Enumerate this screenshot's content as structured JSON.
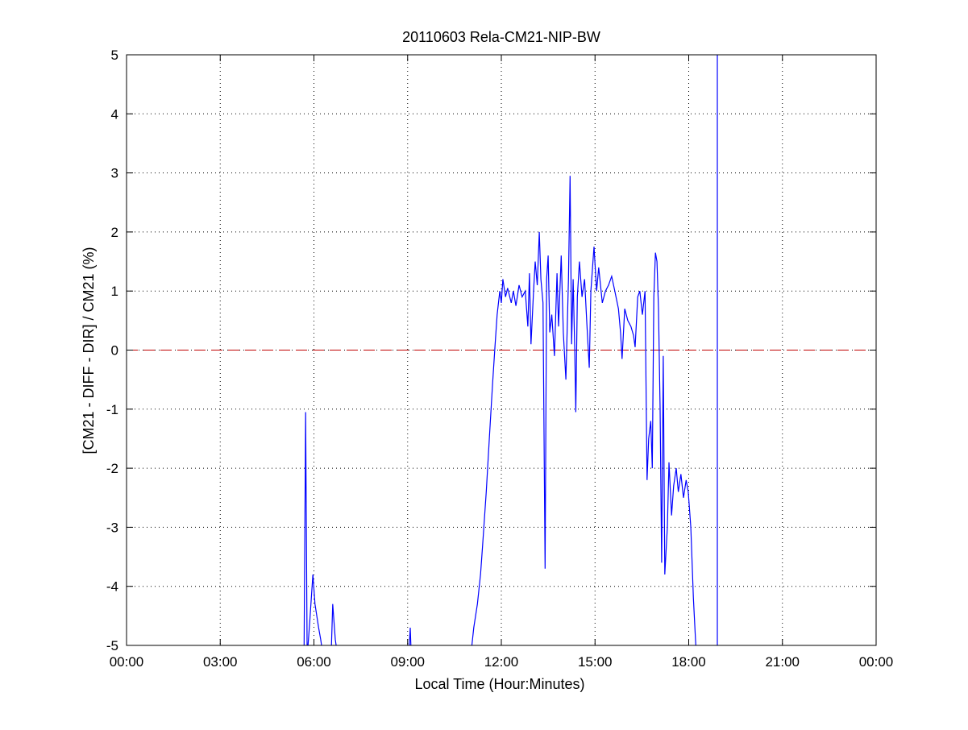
{
  "chart_data": {
    "type": "line",
    "title": "20110603 Rela-CM21-NIP-BW",
    "xlabel": "Local Time (Hour:Minutes)",
    "ylabel": "[CM21 - DIFF - DIR] / CM21 (%)",
    "xlim": [
      "00:00",
      "24:00"
    ],
    "ylim": [
      -5,
      5
    ],
    "x_ticks": [
      "00:00",
      "03:00",
      "06:00",
      "09:00",
      "12:00",
      "15:00",
      "18:00",
      "21:00",
      "00:00"
    ],
    "y_ticks": [
      "5",
      "4",
      "3",
      "2",
      "1",
      "0",
      "-1",
      "-2",
      "-3",
      "-4",
      "-5"
    ],
    "grid": true,
    "reference_line": {
      "y": 0,
      "style": "dashed",
      "color": "#c00000"
    },
    "series_color": "#0000ff",
    "series": [
      {
        "points": [
          [
            "05:41",
            -5.2
          ],
          [
            "05:44",
            -1.05
          ],
          [
            "05:47",
            -5.2
          ],
          [
            "05:52",
            -4.6
          ],
          [
            "05:58",
            -3.8
          ],
          [
            "06:02",
            -4.3
          ],
          [
            "06:09",
            -4.7
          ],
          [
            "06:13",
            -4.9
          ],
          [
            "06:18",
            -5.2
          ],
          null,
          [
            "06:33",
            -5.2
          ],
          [
            "06:36",
            -4.3
          ],
          [
            "06:41",
            -4.9
          ],
          [
            "06:46",
            -5.2
          ],
          null,
          [
            "09:02",
            -5.2
          ],
          [
            "09:05",
            -4.7
          ],
          [
            "09:07",
            -5.2
          ],
          null,
          [
            "11:01",
            -5.2
          ],
          [
            "11:07",
            -4.7
          ],
          [
            "11:14",
            -4.3
          ],
          [
            "11:20",
            -3.8
          ],
          [
            "11:24",
            -3.3
          ],
          [
            "11:31",
            -2.4
          ],
          [
            "11:37",
            -1.5
          ],
          [
            "11:43",
            -0.6
          ],
          [
            "11:48",
            0.1
          ],
          [
            "11:52",
            0.6
          ],
          [
            "11:57",
            1.0
          ],
          [
            "12:00",
            0.8
          ],
          [
            "12:03",
            1.2
          ],
          [
            "12:08",
            0.9
          ],
          [
            "12:12",
            1.05
          ],
          [
            "12:19",
            0.8
          ],
          [
            "12:23",
            1.0
          ],
          [
            "12:28",
            0.75
          ],
          [
            "12:34",
            1.1
          ],
          [
            "12:40",
            0.9
          ],
          [
            "12:46",
            1.0
          ],
          [
            "12:51",
            0.4
          ],
          [
            "12:54",
            1.3
          ],
          [
            "12:57",
            0.1
          ],
          [
            "13:02",
            1.0
          ],
          [
            "13:05",
            1.5
          ],
          [
            "13:09",
            1.1
          ],
          [
            "13:13",
            2.0
          ],
          [
            "13:16",
            1.2
          ],
          [
            "13:20",
            0.8
          ],
          [
            "13:24",
            -3.7
          ],
          [
            "13:27",
            1.2
          ],
          [
            "13:30",
            1.6
          ],
          [
            "13:33",
            0.3
          ],
          [
            "13:37",
            0.6
          ],
          [
            "13:42",
            -0.1
          ],
          [
            "13:47",
            1.3
          ],
          [
            "13:50",
            0.4
          ],
          [
            "13:55",
            1.6
          ],
          [
            "13:59",
            0.3
          ],
          [
            "14:04",
            -0.5
          ],
          [
            "14:09",
            1.2
          ],
          [
            "14:12",
            2.95
          ],
          [
            "14:15",
            0.1
          ],
          [
            "14:18",
            1.2
          ],
          [
            "14:21",
            0.0
          ],
          [
            "14:23",
            -1.05
          ],
          [
            "14:26",
            0.9
          ],
          [
            "14:30",
            1.5
          ],
          [
            "14:35",
            0.9
          ],
          [
            "14:40",
            1.2
          ],
          [
            "14:44",
            0.5
          ],
          [
            "14:49",
            -0.3
          ],
          [
            "14:52",
            1.0
          ],
          [
            "14:58",
            1.75
          ],
          [
            "15:03",
            1.0
          ],
          [
            "15:07",
            1.4
          ],
          [
            "15:14",
            0.8
          ],
          [
            "15:20",
            1.0
          ],
          [
            "15:26",
            1.1
          ],
          [
            "15:32",
            1.25
          ],
          [
            "15:38",
            1.0
          ],
          [
            "15:45",
            0.7
          ],
          [
            "15:49",
            0.3
          ],
          [
            "15:52",
            -0.15
          ],
          [
            "15:57",
            0.7
          ],
          [
            "16:03",
            0.5
          ],
          [
            "16:09",
            0.4
          ],
          [
            "16:14",
            0.25
          ],
          [
            "16:17",
            0.05
          ],
          [
            "16:22",
            0.9
          ],
          [
            "16:26",
            1.0
          ],
          [
            "16:31",
            0.6
          ],
          [
            "16:36",
            1.0
          ],
          [
            "16:40",
            -2.2
          ],
          [
            "16:43",
            -1.5
          ],
          [
            "16:47",
            -1.2
          ],
          [
            "16:50",
            -2.0
          ],
          [
            "16:53",
            0.9
          ],
          [
            "16:56",
            1.65
          ],
          [
            "16:59",
            1.5
          ],
          [
            "17:02",
            0.7
          ],
          [
            "17:05",
            -1.0
          ],
          [
            "17:08",
            -3.6
          ],
          [
            "17:11",
            -0.1
          ],
          [
            "17:14",
            -3.8
          ],
          [
            "17:19",
            -3.0
          ],
          [
            "17:22",
            -1.9
          ],
          [
            "17:27",
            -2.8
          ],
          [
            "17:31",
            -2.3
          ],
          [
            "17:36",
            -2.0
          ],
          [
            "17:40",
            -2.4
          ],
          [
            "17:45",
            -2.1
          ],
          [
            "17:50",
            -2.5
          ],
          [
            "17:55",
            -2.2
          ],
          [
            "17:59",
            -2.4
          ],
          [
            "18:04",
            -3.0
          ],
          [
            "18:09",
            -4.2
          ],
          [
            "18:13",
            -4.9
          ],
          [
            "18:15",
            -5.2
          ],
          null,
          [
            "18:55",
            -5.2
          ],
          [
            "18:55",
            5.2
          ]
        ]
      }
    ]
  }
}
